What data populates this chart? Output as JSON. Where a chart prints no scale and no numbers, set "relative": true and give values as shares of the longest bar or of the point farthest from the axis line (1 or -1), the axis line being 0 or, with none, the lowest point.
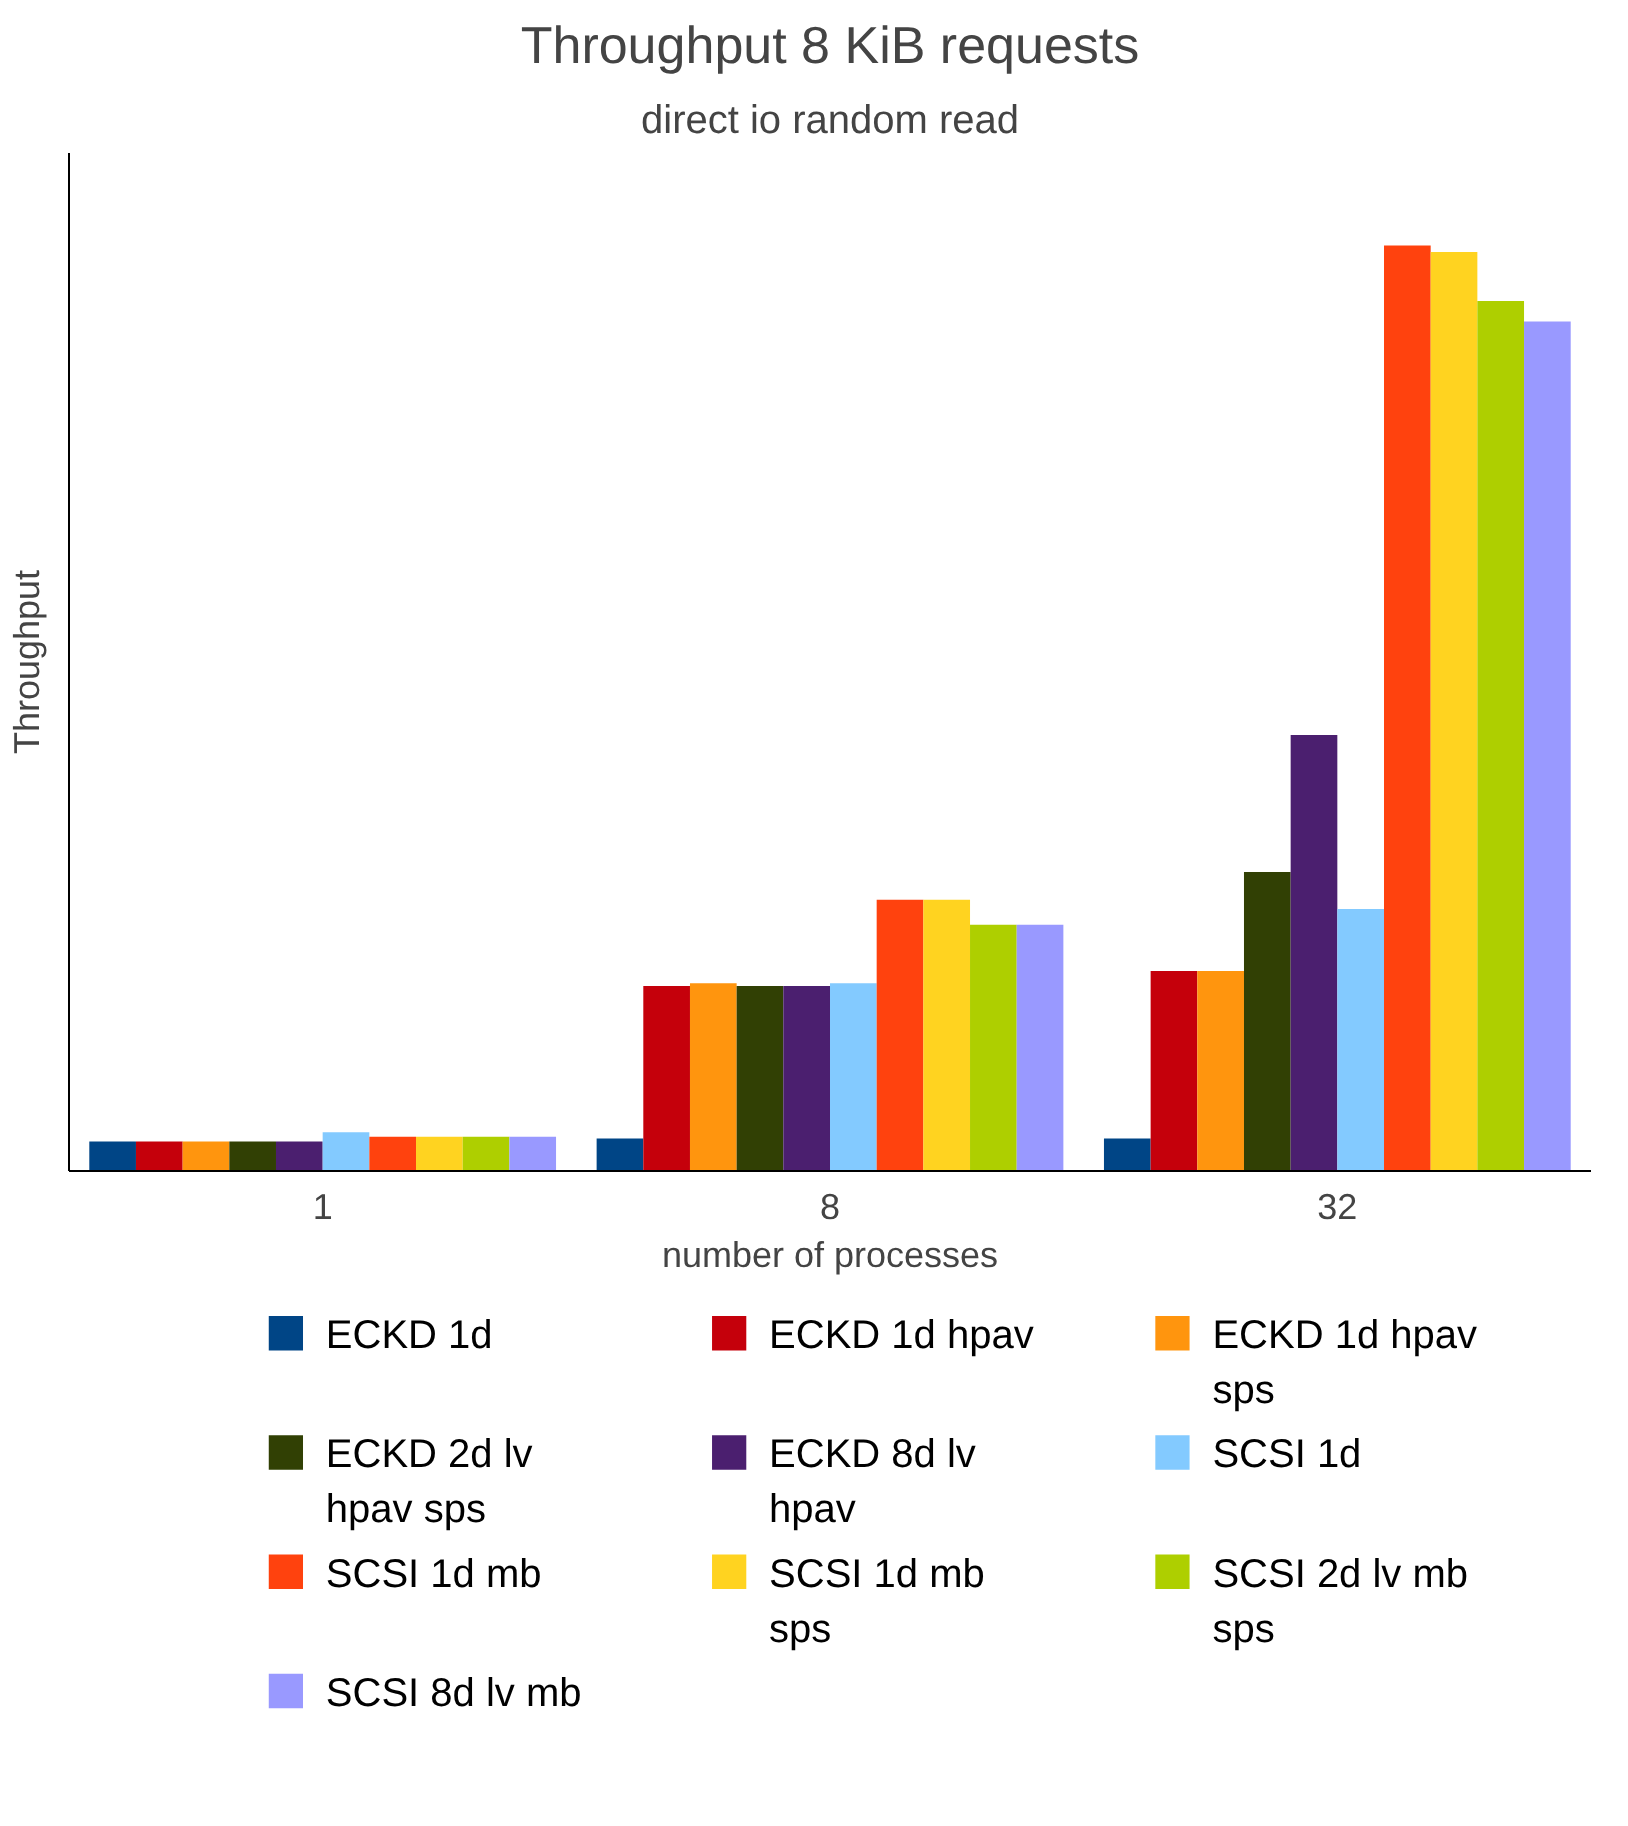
{
  "chart_data": {
    "type": "bar",
    "title": "Throughput 8 KiB requests",
    "subtitle": "direct io random read",
    "xlabel": "number of processes",
    "ylabel": "Throughput",
    "relative": true,
    "legend": "bottom",
    "categories": [
      "1",
      "8",
      "32"
    ],
    "series": [
      {
        "name": "ECKD 1d",
        "color": "#004586",
        "values": [
          0.032,
          0.035,
          0.035
        ]
      },
      {
        "name": "ECKD 1d hpav",
        "color": "#c5000b",
        "values": [
          0.032,
          0.2,
          0.216
        ]
      },
      {
        "name": "ECKD 1d hpav sps",
        "color": "#ff950e",
        "values": [
          0.032,
          0.203,
          0.216
        ]
      },
      {
        "name": "ECKD 2d lv hpav sps",
        "color": "#314004",
        "values": [
          0.032,
          0.2,
          0.323
        ]
      },
      {
        "name": "ECKD 8d lv hpav",
        "color": "#4b1f6f",
        "values": [
          0.032,
          0.2,
          0.471
        ]
      },
      {
        "name": "SCSI 1d",
        "color": "#83caff",
        "values": [
          0.042,
          0.203,
          0.283
        ]
      },
      {
        "name": "SCSI 1d mb",
        "color": "#ff420e",
        "values": [
          0.037,
          0.293,
          1
        ]
      },
      {
        "name": "SCSI 1d mb sps",
        "color": "#ffd320",
        "values": [
          0.037,
          0.293,
          0.993
        ]
      },
      {
        "name": "SCSI 2d lv mb sps",
        "color": "#aecf00",
        "values": [
          0.037,
          0.266,
          0.94
        ]
      },
      {
        "name": "SCSI 8d lv mb",
        "color": "#9999ff",
        "values": [
          0.037,
          0.266,
          0.918
        ]
      }
    ]
  }
}
